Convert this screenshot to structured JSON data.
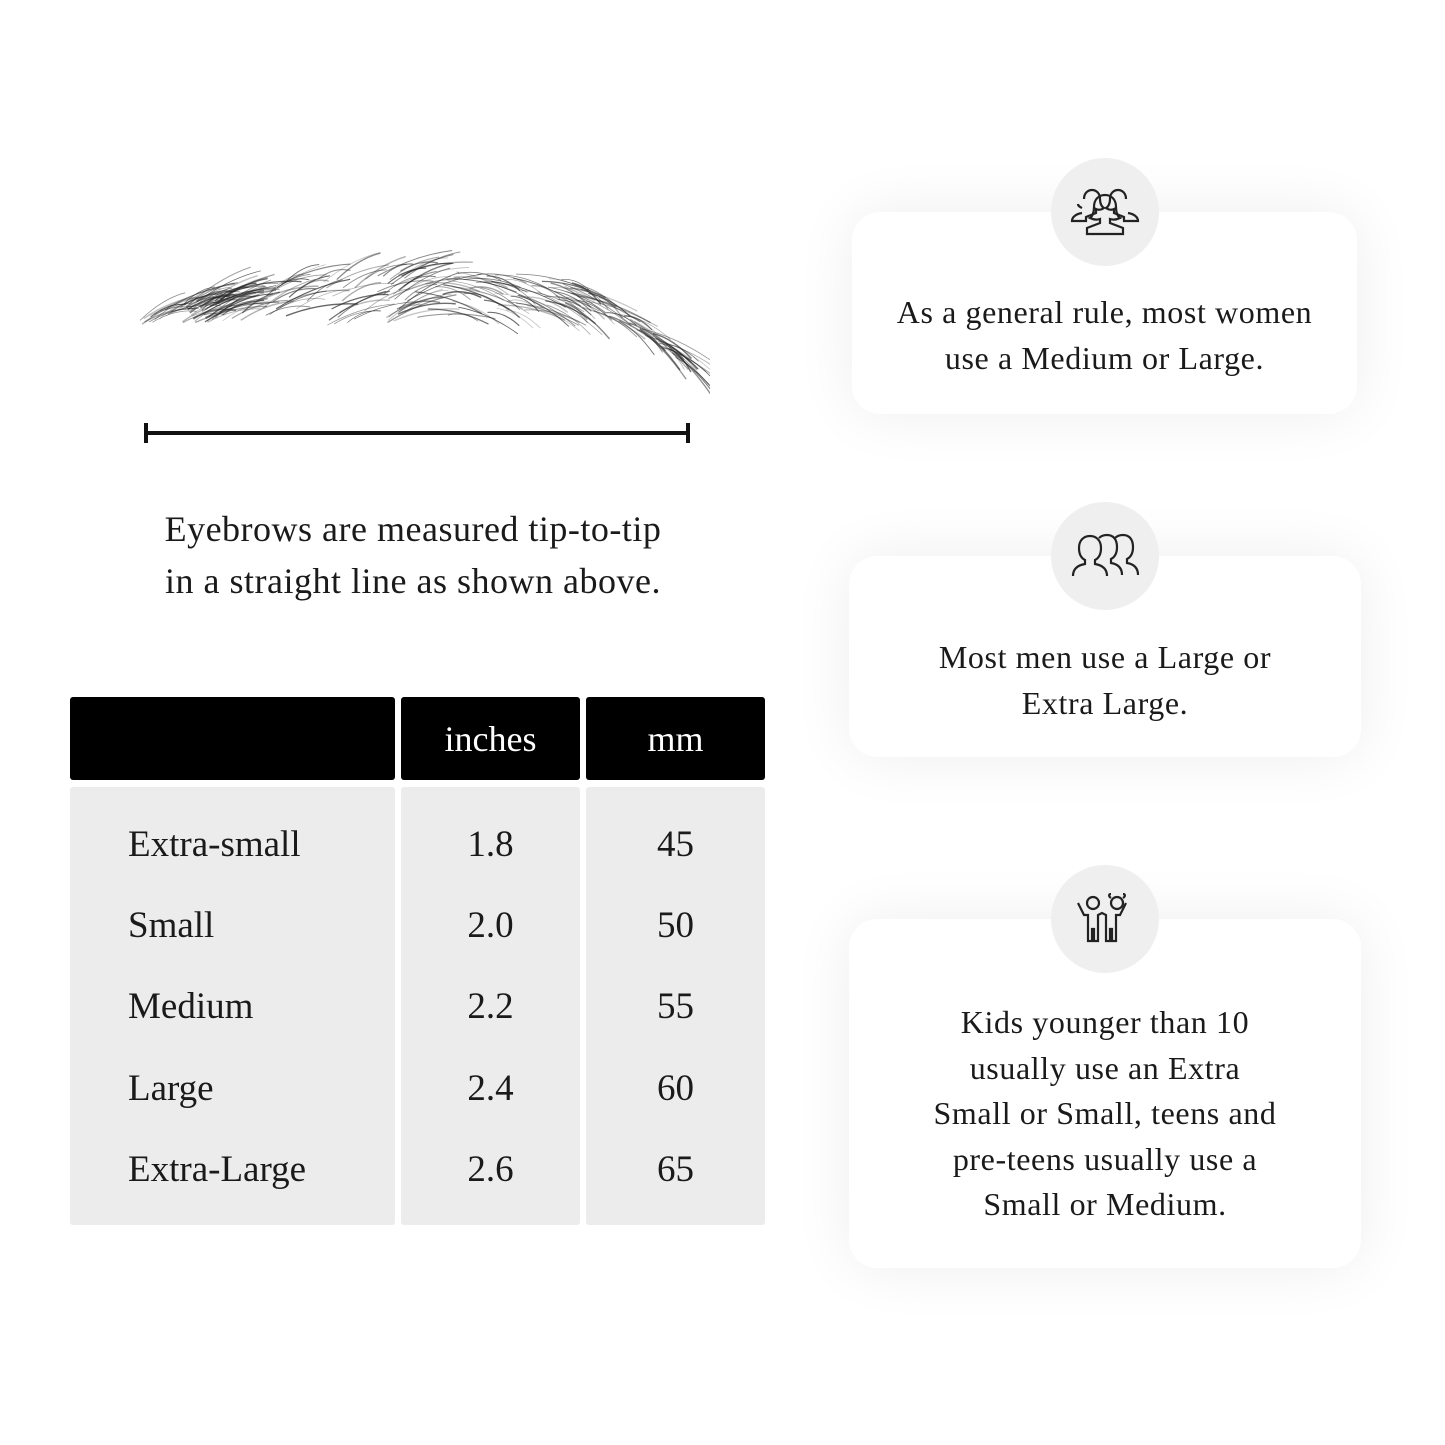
{
  "measure_caption": [
    "Eyebrows are measured tip-to-tip",
    "in a straight line as shown above."
  ],
  "table": {
    "headers": [
      "",
      "inches",
      "mm"
    ],
    "rows": [
      {
        "size": "Extra-small",
        "inches": "1.8",
        "mm": "45"
      },
      {
        "size": "Small",
        "inches": "2.0",
        "mm": "50"
      },
      {
        "size": "Medium",
        "inches": "2.2",
        "mm": "55"
      },
      {
        "size": "Large",
        "inches": "2.4",
        "mm": "60"
      },
      {
        "size": "Extra-Large",
        "inches": "2.6",
        "mm": "65"
      }
    ]
  },
  "cards": [
    {
      "icon": "women-group-icon",
      "lines": [
        "As a general rule, most women",
        "use a Medium or Large."
      ]
    },
    {
      "icon": "men-group-icon",
      "lines": [
        "Most men use a Large or",
        "Extra Large."
      ]
    },
    {
      "icon": "kids-icon",
      "lines": [
        "Kids younger than 10",
        "usually use an Extra",
        "Small or Small, teens and",
        "pre-teens usually use a",
        "Small or Medium."
      ]
    }
  ],
  "colors": {
    "header_bg": "#000000",
    "cell_bg": "#ececec",
    "icon_circle": "#efefef"
  }
}
